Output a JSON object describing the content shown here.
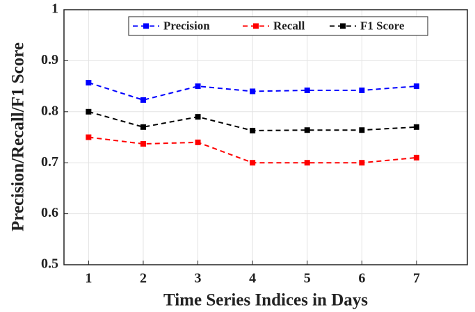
{
  "chart_data": {
    "type": "line",
    "xlabel": "Time Series Indices in Days",
    "ylabel": "Precision/Recall/F1 Score",
    "x": [
      1,
      2,
      3,
      4,
      5,
      6,
      7
    ],
    "series": [
      {
        "name": "Precision",
        "color": "#0000ff",
        "values": [
          0.857,
          0.823,
          0.85,
          0.84,
          0.842,
          0.842,
          0.85
        ]
      },
      {
        "name": "Recall",
        "color": "#ff0000",
        "values": [
          0.75,
          0.737,
          0.74,
          0.7,
          0.7,
          0.7,
          0.71
        ]
      },
      {
        "name": "F1 Score",
        "color": "#000000",
        "values": [
          0.8,
          0.77,
          0.79,
          0.763,
          0.764,
          0.764,
          0.77
        ]
      }
    ],
    "xlim": [
      0.55,
      7.93
    ],
    "xticks": [
      1,
      2,
      3,
      4,
      5,
      6,
      7
    ],
    "ylim": [
      0.5,
      1
    ],
    "yticks": [
      0.5,
      0.6,
      0.7,
      0.8,
      0.9,
      1
    ],
    "grid": true,
    "legend": "top"
  }
}
